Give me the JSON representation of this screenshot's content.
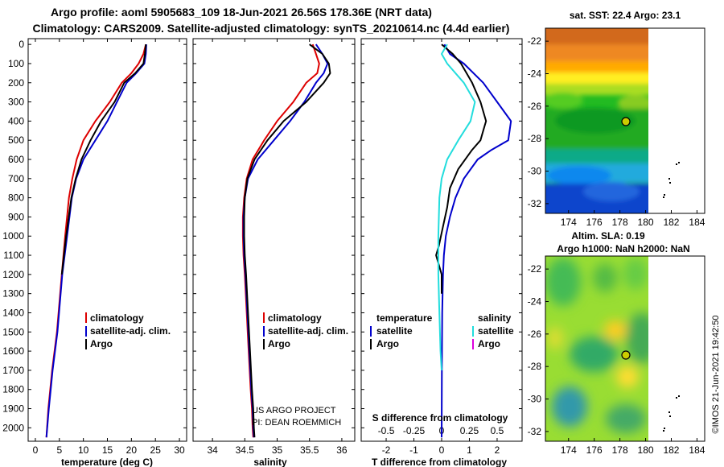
{
  "title_line1": "Argo profile: aoml 5905683_109 18-Jun-2021 26.56S 178.36E (NRT data)",
  "title_line2": "Climatology: CARS2009. Satellite-adjusted climatology: synTS_20210614.nc (4.4d earlier)",
  "colors": {
    "climatology": "#dd0000",
    "satellite": "#0000cc",
    "argo": "#000000",
    "sat_salinity": "#22dddd",
    "argo_salinity": "#dd00dd"
  },
  "depth_axis": {
    "ticks": [
      0,
      100,
      200,
      300,
      400,
      500,
      600,
      700,
      800,
      900,
      1000,
      1100,
      1200,
      1300,
      1400,
      1500,
      1600,
      1700,
      1800,
      1900,
      2000
    ],
    "range": [
      -30,
      2070
    ]
  },
  "chart_data": [
    {
      "type": "line",
      "name": "temperature",
      "xlabel": "temperature (deg C)",
      "xlim": [
        -1.5,
        31.5
      ],
      "xticks": [
        0,
        5,
        10,
        15,
        20,
        25,
        30
      ],
      "xticklabels": [
        "0",
        "5",
        "10",
        "15",
        "20",
        "25",
        "30"
      ],
      "legend": [
        "climatology",
        "satellite-adj. clim.",
        "Argo"
      ],
      "series": [
        {
          "name": "climatology",
          "color": "#dd0000",
          "x": [
            23.0,
            22.5,
            21.5,
            20.0,
            18.0,
            15.5,
            12.5,
            10.0,
            8.6,
            7.7,
            7.0,
            6.2,
            5.5,
            4.5,
            3.5,
            2.7,
            2.3
          ],
          "depth": [
            0,
            50,
            100,
            150,
            200,
            300,
            400,
            500,
            600,
            700,
            800,
            1000,
            1200,
            1500,
            1700,
            1900,
            2050
          ]
        },
        {
          "name": "satellite-adj. clim.",
          "color": "#0000cc",
          "x": [
            23.1,
            23.0,
            22.7,
            21.0,
            19.0,
            17.0,
            15.0,
            12.5,
            10.0,
            8.5,
            7.6,
            6.6,
            5.6,
            4.6,
            3.6,
            2.8,
            2.3
          ],
          "depth": [
            0,
            50,
            100,
            150,
            200,
            300,
            400,
            500,
            600,
            700,
            800,
            1000,
            1200,
            1500,
            1700,
            1900,
            2050
          ]
        },
        {
          "name": "Argo",
          "color": "#000000",
          "x": [
            23.0,
            22.8,
            22.5,
            20.8,
            18.5,
            16.5,
            13.7,
            11.5,
            9.6,
            8.4,
            7.5,
            6.4,
            5.5
          ],
          "depth": [
            0,
            50,
            100,
            150,
            200,
            300,
            400,
            500,
            600,
            700,
            800,
            1000,
            1200
          ]
        }
      ]
    },
    {
      "type": "line",
      "name": "salinity",
      "xlabel": "salinity",
      "xlim": [
        33.7,
        36.2
      ],
      "xticks": [
        34,
        34.5,
        35,
        35.5,
        36
      ],
      "xticklabels": [
        "34",
        "34.5",
        "35",
        "35.5",
        "36"
      ],
      "legend": [
        "climatology",
        "satellite-adj. clim.",
        "Argo"
      ],
      "annotation": [
        "US ARGO PROJECT",
        "PI: DEAN ROEMMICH"
      ],
      "series": [
        {
          "name": "climatology",
          "color": "#dd0000",
          "x": [
            35.55,
            35.6,
            35.65,
            35.62,
            35.45,
            35.25,
            35.0,
            34.8,
            34.62,
            34.53,
            34.49,
            34.47,
            34.47,
            34.48,
            34.5,
            34.53,
            34.56,
            34.59,
            34.61,
            34.62,
            34.63
          ],
          "depth": [
            0,
            50,
            100,
            150,
            200,
            300,
            400,
            500,
            600,
            700,
            800,
            900,
            1000,
            1100,
            1200,
            1400,
            1600,
            1800,
            1900,
            2000,
            2050
          ]
        },
        {
          "name": "satellite-adj. clim.",
          "color": "#0000cc",
          "x": [
            35.6,
            35.7,
            35.78,
            35.72,
            35.6,
            35.42,
            35.2,
            34.95,
            34.7,
            34.55,
            34.5,
            34.48,
            34.48,
            34.49,
            34.51,
            34.54,
            34.57,
            34.6,
            34.62,
            34.63,
            34.64
          ],
          "depth": [
            0,
            50,
            100,
            150,
            200,
            300,
            400,
            500,
            600,
            700,
            800,
            900,
            1000,
            1100,
            1200,
            1400,
            1600,
            1800,
            1900,
            2000,
            2050
          ]
        },
        {
          "name": "Argo",
          "color": "#000000",
          "x": [
            35.5,
            35.7,
            35.8,
            35.82,
            35.72,
            35.45,
            35.1,
            34.85,
            34.65,
            34.54,
            34.5,
            34.49,
            34.49,
            34.5,
            34.52,
            34.55,
            34.58,
            34.61,
            34.63,
            34.64,
            34.65
          ],
          "depth": [
            0,
            50,
            100,
            150,
            200,
            300,
            400,
            500,
            600,
            700,
            800,
            900,
            1000,
            1100,
            1200,
            1400,
            1600,
            1800,
            1900,
            2000,
            2050
          ]
        }
      ]
    },
    {
      "type": "line",
      "name": "difference",
      "xlabel": "T difference from climatology",
      "xlim": [
        -2.9,
        2.9
      ],
      "xticks": [
        -2,
        -1,
        0,
        1,
        2
      ],
      "xticklabels": [
        "-2",
        "-1",
        "0",
        "1",
        "2"
      ],
      "sticks": [
        -0.5,
        -0.25,
        0,
        0.25,
        0.5
      ],
      "sticklabels": [
        "-0.5",
        "-0.25",
        "0",
        "0.25",
        "0.5"
      ],
      "s_axis_label": "S difference from climatology",
      "legend_headers": [
        "temperature",
        "salinity"
      ],
      "legend": [
        "satellite",
        "Argo",
        "satellite",
        "Argo"
      ],
      "series": [
        {
          "name": "T satellite",
          "color": "#0000cc",
          "x": [
            0.1,
            0.3,
            0.8,
            1.5,
            2.0,
            2.5,
            2.4,
            1.8,
            1.3,
            0.8,
            0.5,
            0.3,
            0.15,
            0.08,
            0.05,
            0.02,
            0.01,
            0.0
          ],
          "depth": [
            0,
            50,
            100,
            200,
            300,
            400,
            500,
            550,
            600,
            700,
            800,
            900,
            1000,
            1100,
            1200,
            1400,
            1700,
            2050
          ]
        },
        {
          "name": "T Argo",
          "color": "#000000",
          "x": [
            0.0,
            0.4,
            0.7,
            1.1,
            1.4,
            1.6,
            1.5,
            1.4,
            1.1,
            0.6,
            0.3,
            0.2,
            0.05,
            -0.1,
            -0.2,
            0.0,
            0.0
          ],
          "depth": [
            0,
            50,
            100,
            200,
            300,
            400,
            450,
            500,
            550,
            650,
            750,
            850,
            950,
            1050,
            1100,
            1200,
            1300
          ]
        },
        {
          "name": "S satellite",
          "color": "#22dddd",
          "x": [
            0.05,
            0.0,
            0.05,
            0.2,
            0.3,
            0.26,
            0.15,
            0.05,
            0.0,
            -0.02,
            -0.03,
            -0.03,
            -0.02,
            -0.01,
            0.0
          ],
          "depth": [
            0,
            50,
            100,
            200,
            300,
            400,
            500,
            600,
            700,
            800,
            1000,
            1200,
            1400,
            1600,
            1700
          ]
        }
      ]
    }
  ],
  "maps": [
    {
      "title": "sat. SST: 22.4 Argo: 23.1",
      "xticks": [
        "174",
        "176",
        "178",
        "180",
        "182",
        "184"
      ],
      "yticks": [
        "-22",
        "-24",
        "-26",
        "-28",
        "-30",
        "-32"
      ],
      "kind": "sst"
    },
    {
      "title_line1": "Altim. SLA: 0.19",
      "title_line2": "Argo h1000: NaN h2000: NaN",
      "xticks": [
        "174",
        "176",
        "178",
        "180",
        "182",
        "184"
      ],
      "yticks": [
        "-22",
        "-24",
        "-26",
        "-28",
        "-30",
        "-32"
      ],
      "kind": "sla"
    }
  ],
  "credit": "©IMOS 21-Jun-2021 19:42:50"
}
